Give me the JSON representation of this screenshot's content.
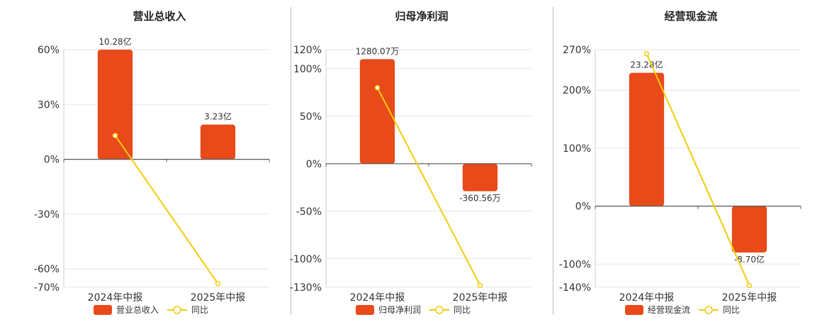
{
  "colors": {
    "bar": "#e84a1a",
    "line": "#f2cc0c",
    "grid": "#e6e6e6",
    "axis": "#555555",
    "divider": "#bbbbbb"
  },
  "chart_data": [
    {
      "type": "bar",
      "title": "营业总收入",
      "categories": [
        "2024年中报",
        "2025年中报"
      ],
      "ylim": [
        -70,
        60
      ],
      "yticks": [
        60,
        30,
        0,
        -30,
        -60,
        -70
      ],
      "ytick_labels": [
        "60%",
        "30%",
        "0%",
        "-30%",
        "-60%",
        "-70%"
      ],
      "series": [
        {
          "name": "营业总收入",
          "type": "bar",
          "values": [
            60,
            19
          ],
          "labels": [
            "10.28亿",
            "3.23亿"
          ]
        },
        {
          "name": "同比",
          "type": "line",
          "values": [
            13,
            -68
          ]
        }
      ],
      "legend": "bottom"
    },
    {
      "type": "bar",
      "title": "归母净利润",
      "categories": [
        "2024年中报",
        "2025年中报"
      ],
      "ylim": [
        -130,
        120
      ],
      "yticks": [
        120,
        100,
        50,
        0,
        -50,
        -100,
        -130
      ],
      "ytick_labels": [
        "120%",
        "100%",
        "50%",
        "0%",
        "-50%",
        "-100%",
        "-130%"
      ],
      "series": [
        {
          "name": "归母净利润",
          "type": "bar",
          "values": [
            110,
            -29
          ],
          "labels": [
            "1280.07万",
            "-360.56万"
          ]
        },
        {
          "name": "同比",
          "type": "line",
          "values": [
            80,
            -128
          ]
        }
      ],
      "legend": "bottom"
    },
    {
      "type": "bar",
      "title": "经营现金流",
      "categories": [
        "2024年中报",
        "2025年中报"
      ],
      "ylim": [
        -140,
        270
      ],
      "yticks": [
        270,
        200,
        100,
        0,
        -100,
        -140
      ],
      "ytick_labels": [
        "270%",
        "200%",
        "100%",
        "0%",
        "-100%",
        "-140%"
      ],
      "series": [
        {
          "name": "经营现金流",
          "type": "bar",
          "values": [
            230,
            -80
          ],
          "labels": [
            "23.28亿",
            "-8.70亿"
          ]
        },
        {
          "name": "同比",
          "type": "line",
          "values": [
            263,
            -137
          ]
        }
      ],
      "legend": "bottom"
    }
  ]
}
